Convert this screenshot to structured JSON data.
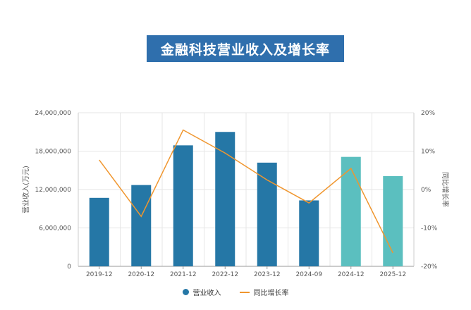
{
  "title": "金融科技营业收入及增长率",
  "colors": {
    "bar": "#2577a6",
    "bar_forecast": "#5bbfbf",
    "line": "#f0962e",
    "title_bg": "#2f6fad"
  },
  "chart_data": {
    "type": "bar",
    "categories": [
      "2019-12",
      "2020-12",
      "2021-12",
      "2022-12",
      "2023-12",
      "2024-09",
      "2024-12",
      "2025-12"
    ],
    "series": [
      {
        "name": "营业收入",
        "type": "bar",
        "axis": "left",
        "values": [
          10700000,
          12700000,
          18900000,
          21000000,
          16200000,
          10300000,
          17100000,
          14100000
        ],
        "forecast": [
          false,
          false,
          false,
          false,
          false,
          false,
          true,
          true
        ]
      },
      {
        "name": "同比增长率",
        "type": "line",
        "axis": "right",
        "values": [
          7.7,
          -7.0,
          15.5,
          9.5,
          2.5,
          -3.5,
          5.5,
          -16.5
        ]
      }
    ],
    "ylabel": "营业收入(万元)",
    "ylabel_right": "同比增长率",
    "ylim": [
      0,
      24000000
    ],
    "yticks": [
      "0",
      "6,000,000",
      "12,000,000",
      "18,000,000",
      "24,000,000"
    ],
    "ylim_right": [
      -20,
      20
    ],
    "yticks_right": [
      "-20%",
      "-10%",
      "0%",
      "10%",
      "20%"
    ],
    "legend_position": "bottom"
  }
}
